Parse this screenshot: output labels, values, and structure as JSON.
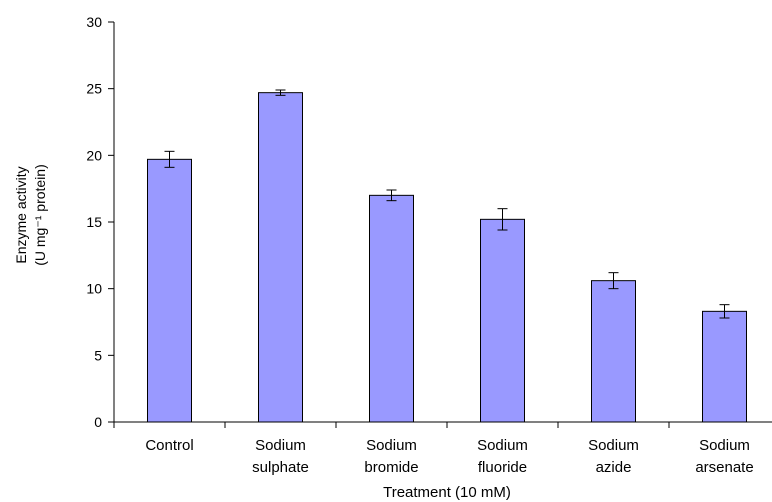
{
  "chart_data": {
    "type": "bar",
    "categories": [
      [
        "Control"
      ],
      [
        "Sodium",
        "sulphate"
      ],
      [
        "Sodium",
        "bromide"
      ],
      [
        "Sodium",
        "fluoride"
      ],
      [
        "Sodium",
        "azide"
      ],
      [
        "Sodium",
        "arsenate"
      ]
    ],
    "values": [
      19.7,
      24.7,
      17.0,
      15.2,
      10.6,
      8.3
    ],
    "errors": [
      0.6,
      0.2,
      0.4,
      0.8,
      0.6,
      0.5
    ],
    "xlabel": "Treatment (10 mM)",
    "ylabel_lines": [
      "Enzyme activity",
      "(U mg⁻¹ protein)"
    ],
    "ylim": [
      0,
      30
    ],
    "yticks": [
      0,
      5,
      10,
      15,
      20,
      25,
      30
    ],
    "grid": false,
    "legend": "none",
    "colors": {
      "bar_fill": "#9999ff",
      "bar_stroke": "#000000",
      "axis": "#000000"
    }
  }
}
